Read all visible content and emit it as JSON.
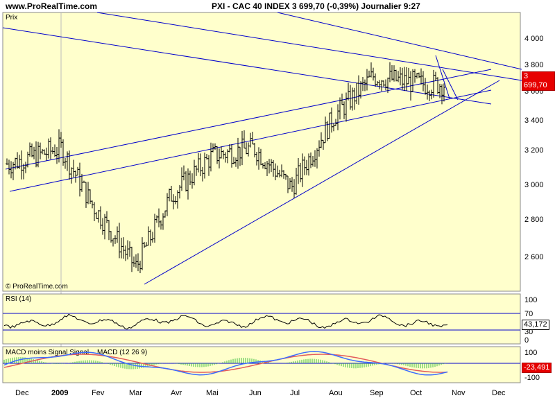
{
  "header": {
    "site": "www.ProRealTime.com",
    "title": "PXI - CAC 40 INDEX    3 699,70 (-0,39%)    Journalier  9:27"
  },
  "colors": {
    "panel_bg": "#ffffcc",
    "trend_lines": "#0000cc",
    "price_tag": "#e60000",
    "macd_line": "#3b6cff",
    "signal_line": "#e35a5a",
    "histogram": "#3fbf3f"
  },
  "price_panel": {
    "label": "Prix",
    "watermark": "© ProRealTime.com",
    "current_value": "3 699,70",
    "y_ticks": [
      "4 000",
      "3 800",
      "3 600",
      "3 400",
      "3 200",
      "3 000",
      "2 800",
      "2 600"
    ]
  },
  "rsi_panel": {
    "label": "RSI (14)",
    "current_value": "43,172",
    "y_ticks": [
      "100",
      "70",
      "30",
      "0"
    ]
  },
  "macd_panel": {
    "label_part1": "MACD moins Signal Signal",
    "label_part2": "MACD (12 26 9)",
    "current_value": "-23,491",
    "y_ticks": [
      "100",
      "-100"
    ]
  },
  "x_axis": {
    "labels": [
      "Dec",
      "2009",
      "Fev",
      "Mar",
      "Avr",
      "Mai",
      "Jun",
      "Jul",
      "Aou",
      "Sep",
      "Oct",
      "Nov",
      "Dec"
    ]
  },
  "chart_data": {
    "type": "line",
    "x": [
      "2008-12",
      "2009-01",
      "2009-02",
      "2009-03",
      "2009-04",
      "2009-05",
      "2009-06",
      "2009-07",
      "2009-08",
      "2009-09",
      "2009-10"
    ],
    "series": [
      {
        "values": [
          3200,
          3300,
          2950,
          2550,
          3000,
          3250,
          3300,
          3050,
          3500,
          3750,
          3700
        ]
      }
    ],
    "ylim": [
      2400,
      4150
    ],
    "rsi_last": 43.172,
    "macd_last": -23.491
  }
}
